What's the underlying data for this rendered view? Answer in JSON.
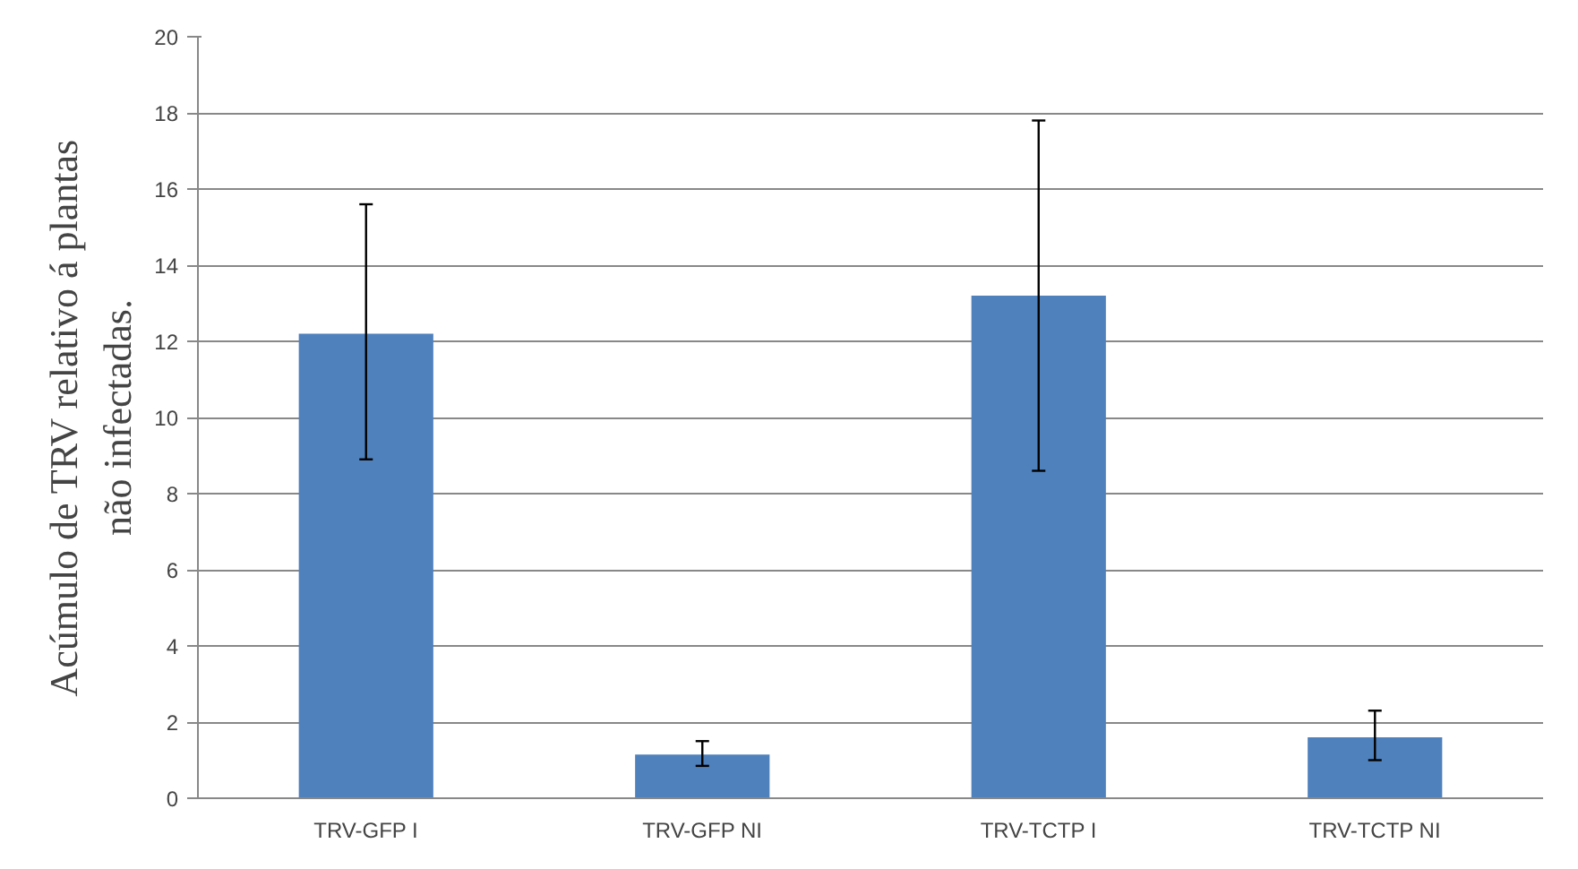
{
  "chart_data": {
    "type": "bar",
    "ylabel": "Acúmulo de TRV relativo á plantas\nnão infectadas.",
    "categories": [
      "TRV-GFP I",
      "TRV-GFP NI",
      "TRV-TCTP I",
      "TRV-TCTP NI"
    ],
    "values": [
      12.2,
      1.15,
      13.2,
      1.6
    ],
    "errors": [
      [
        8.9,
        15.6
      ],
      [
        0.85,
        1.5
      ],
      [
        8.6,
        17.8
      ],
      [
        1.0,
        2.3
      ]
    ],
    "color": "#4f81bd",
    "ylim": [
      0,
      20
    ],
    "yticks": [
      0,
      2,
      4,
      6,
      8,
      10,
      12,
      14,
      16,
      18,
      20
    ],
    "grid": "y"
  }
}
